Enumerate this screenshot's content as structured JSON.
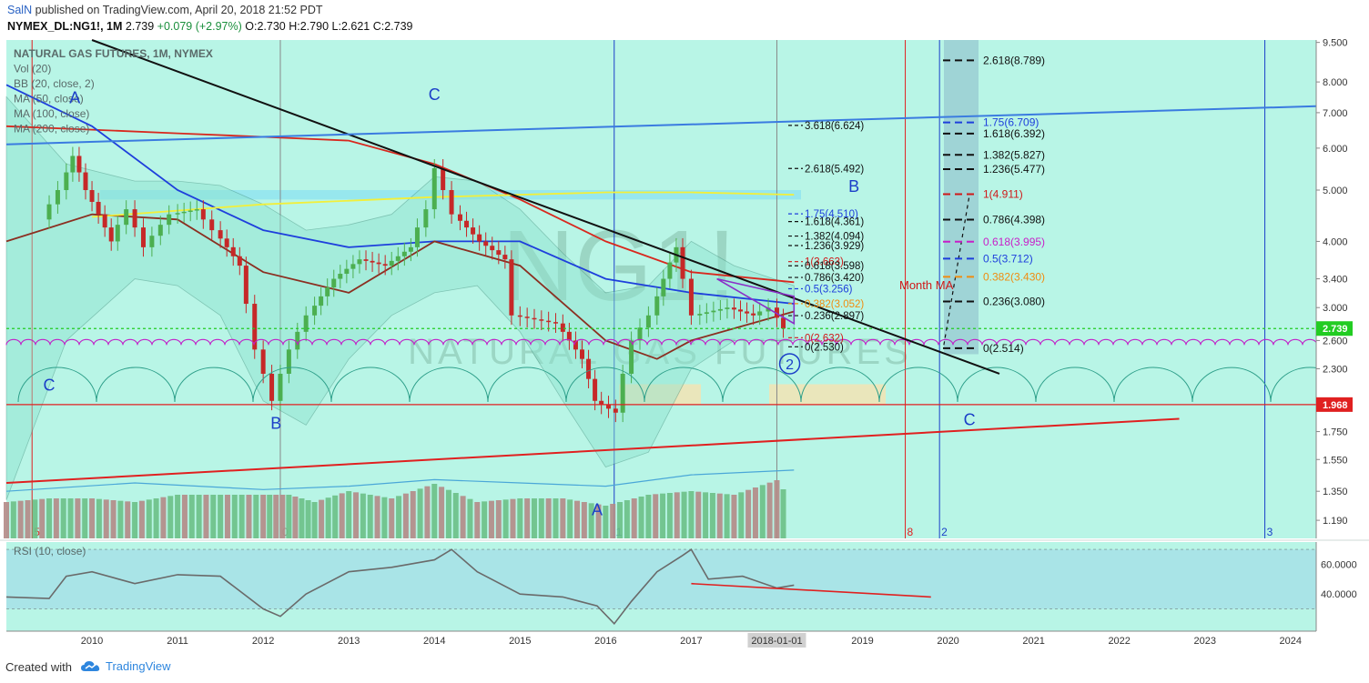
{
  "header": {
    "publisher_user": "SalN",
    "publisher_text": " published on TradingView.com, April 20, 2018 21:52 PDT",
    "symbol": "NYMEX_DL:NG1!, 1M",
    "last": "2.739",
    "change": "+0.079 (+2.97%)",
    "ohlc": {
      "O": "2.730",
      "H": "2.790",
      "L": "2.621",
      "C": "2.739"
    }
  },
  "legend": [
    "NATURAL GAS FUTURES, 1M, NYMEX",
    "Vol (20)",
    "BB (20, close, 2)",
    "MA (50, close)",
    "MA (100, close)",
    "MA (200, close)"
  ],
  "watermark": {
    "ticker": "NG1!",
    "name": "NATURAL GAS FUTURES"
  },
  "footer": {
    "created_with": "Created with",
    "brand": "TradingView"
  },
  "colors": {
    "background": "#b8f5e6",
    "bb_fill": "#8ee3cf",
    "ma50": "#1e3fdc",
    "ma100": "#d8281e",
    "ma200": "#8b2f21",
    "trend_black": "#111111",
    "trend_blue": "#3a7be0",
    "trend_red": "#e02020",
    "up_candle": "#4caf50",
    "down_candle": "#c62828"
  },
  "chart_data": {
    "type": "candlestick",
    "title": "NATURAL GAS FUTURES, 1M, NYMEX",
    "x_axis_labels": [
      "2010",
      "2011",
      "2012",
      "2013",
      "2014",
      "2015",
      "2016",
      "2017",
      "2018-01-01",
      "2019",
      "2020",
      "2021",
      "2022",
      "2023",
      "2024"
    ],
    "y_axis_labels": [
      "9.500",
      "8.000",
      "7.000",
      "6.000",
      "5.000",
      "4.000",
      "3.400",
      "3.000",
      "2.600",
      "2.300",
      "1.750",
      "1.550",
      "1.350",
      "1.190"
    ],
    "ylim": [
      1.1,
      9.6
    ],
    "y_scale": "log",
    "last_price_label": "2.739",
    "support_price_label": "1.968",
    "ohlc_path": [
      [
        2009.5,
        4.4
      ],
      [
        2009.7,
        5.0
      ],
      [
        2009.85,
        5.8
      ],
      [
        2010.0,
        5.0
      ],
      [
        2010.3,
        4.0
      ],
      [
        2010.5,
        4.6
      ],
      [
        2010.7,
        3.9
      ],
      [
        2010.9,
        4.3
      ],
      [
        2011.0,
        4.5
      ],
      [
        2011.3,
        4.6
      ],
      [
        2011.5,
        4.2
      ],
      [
        2011.8,
        3.6
      ],
      [
        2012.0,
        2.5
      ],
      [
        2012.2,
        2.0
      ],
      [
        2012.4,
        2.5
      ],
      [
        2012.6,
        2.9
      ],
      [
        2012.9,
        3.4
      ],
      [
        2013.2,
        3.7
      ],
      [
        2013.5,
        3.6
      ],
      [
        2013.8,
        3.9
      ],
      [
        2014.0,
        4.6
      ],
      [
        2014.1,
        5.5
      ],
      [
        2014.3,
        4.5
      ],
      [
        2014.6,
        4.0
      ],
      [
        2014.9,
        3.7
      ],
      [
        2015.0,
        2.9
      ],
      [
        2015.5,
        2.8
      ],
      [
        2015.8,
        2.4
      ],
      [
        2015.95,
        2.0
      ],
      [
        2016.2,
        1.9
      ],
      [
        2016.4,
        2.6
      ],
      [
        2016.6,
        2.9
      ],
      [
        2016.9,
        3.9
      ],
      [
        2017.1,
        2.9
      ],
      [
        2017.5,
        3.0
      ],
      [
        2017.8,
        2.9
      ],
      [
        2018.0,
        3.0
      ],
      [
        2018.15,
        2.74
      ]
    ],
    "ma50": [
      [
        2009.0,
        7.9
      ],
      [
        2010.0,
        6.6
      ],
      [
        2011.0,
        5.0
      ],
      [
        2012.0,
        4.2
      ],
      [
        2013.0,
        3.9
      ],
      [
        2014.0,
        4.0
      ],
      [
        2015.0,
        4.0
      ],
      [
        2016.0,
        3.4
      ],
      [
        2017.0,
        3.2
      ],
      [
        2018.2,
        3.05
      ]
    ],
    "ma100": [
      [
        2009.0,
        6.6
      ],
      [
        2010.0,
        6.5
      ],
      [
        2011.0,
        6.4
      ],
      [
        2012.0,
        6.3
      ],
      [
        2013.0,
        6.2
      ],
      [
        2014.0,
        5.6
      ],
      [
        2015.0,
        4.8
      ],
      [
        2016.0,
        4.0
      ],
      [
        2017.0,
        3.5
      ],
      [
        2018.2,
        3.35
      ]
    ],
    "ma200": [
      [
        2009.0,
        4.0
      ],
      [
        2010.0,
        4.5
      ],
      [
        2011.0,
        4.4
      ],
      [
        2012.0,
        3.5
      ],
      [
        2013.0,
        3.2
      ],
      [
        2014.0,
        4.0
      ],
      [
        2015.0,
        3.6
      ],
      [
        2016.0,
        2.6
      ],
      [
        2016.6,
        2.4
      ],
      [
        2017.0,
        2.6
      ],
      [
        2018.2,
        2.95
      ]
    ],
    "trendlines": [
      {
        "color": "#111111",
        "from": [
          2010.0,
          9.6
        ],
        "to": [
          2020.6,
          2.25
        ]
      },
      {
        "color": "#3a7be0",
        "from": [
          2009.0,
          6.1
        ],
        "to": [
          2024.3,
          7.2
        ]
      },
      {
        "color": "#e02020",
        "from": [
          2009.0,
          1.4
        ],
        "to": [
          2022.7,
          1.85
        ]
      }
    ],
    "horizontal_levels": [
      {
        "price": 2.739,
        "color": "#22cc22",
        "dashed": true
      },
      {
        "price": 1.968,
        "color": "#e02020",
        "dashed": false
      }
    ],
    "wave_labels": [
      {
        "text": "A",
        "x": 2009.8,
        "price": 7.5,
        "color": "#1b3fc8"
      },
      {
        "text": "C",
        "x": 2014.0,
        "price": 7.6,
        "color": "#1b3fc8"
      },
      {
        "text": "C",
        "x": 2009.5,
        "price": 2.15,
        "color": "#1b3fc8"
      },
      {
        "text": "B",
        "x": 2012.15,
        "price": 1.82,
        "color": "#1b3fc8"
      },
      {
        "text": "A",
        "x": 2015.9,
        "price": 1.25,
        "color": "#1b3fc8"
      },
      {
        "text": "B",
        "x": 2018.9,
        "price": 5.1,
        "color": "#1b3fc8"
      },
      {
        "text": "C",
        "x": 2020.25,
        "price": 1.85,
        "color": "#1b3fc8"
      },
      {
        "text": "2",
        "x": 2018.15,
        "price": 2.35,
        "color": "#1b3fc8"
      }
    ],
    "vertical_markers": [
      {
        "x": 2009.3,
        "color": "#e02020",
        "label": "5"
      },
      {
        "x": 2012.2,
        "color": "#888888",
        "label": "0"
      },
      {
        "x": 2016.1,
        "color": "#1b3fc8",
        "label": "1"
      },
      {
        "x": 2018.0,
        "color": "#888888",
        "label": ""
      },
      {
        "x": 2019.5,
        "color": "#e02020",
        "label": "8"
      },
      {
        "x": 2019.9,
        "color": "#1b3fc8",
        "label": "2"
      },
      {
        "x": 2023.7,
        "color": "#1b3fc8",
        "label": "3"
      }
    ],
    "fib_right": [
      {
        "text": "2.618(8.789)",
        "price": 8.789,
        "color": "#111111"
      },
      {
        "text": "1.75(6.709)",
        "price": 6.709,
        "color": "#1e3fdc"
      },
      {
        "text": "1.618(6.392)",
        "price": 6.392,
        "color": "#111111"
      },
      {
        "text": "1.382(5.827)",
        "price": 5.827,
        "color": "#111111"
      },
      {
        "text": "1.236(5.477)",
        "price": 5.477,
        "color": "#111111"
      },
      {
        "text": "1(4.911)",
        "price": 4.911,
        "color": "#d01818"
      },
      {
        "text": "0.786(4.398)",
        "price": 4.398,
        "color": "#111111"
      },
      {
        "text": "0.618(3.995)",
        "price": 3.995,
        "color": "#c81fc8"
      },
      {
        "text": "0.5(3.712)",
        "price": 3.712,
        "color": "#1e3fdc"
      },
      {
        "text": "0.382(3.430)",
        "price": 3.43,
        "color": "#f08c10"
      },
      {
        "text": "0.236(3.080)",
        "price": 3.08,
        "color": "#111111"
      },
      {
        "text": "0(2.514)",
        "price": 2.514,
        "color": "#111111"
      }
    ],
    "fib_cluster": [
      {
        "text": "3.618(6.624)",
        "price": 6.624,
        "color": "#111111"
      },
      {
        "text": "2.618(5.492)",
        "price": 5.492,
        "color": "#111111"
      },
      {
        "text": "1.75(4.510)",
        "price": 4.51,
        "color": "#1e3fdc"
      },
      {
        "text": "1.618(4.361)",
        "price": 4.361,
        "color": "#111111"
      },
      {
        "text": "1.382(4.094)",
        "price": 4.094,
        "color": "#111111"
      },
      {
        "text": "1.236(3.929)",
        "price": 3.929,
        "color": "#111111"
      },
      {
        "text": "1(3.663)",
        "price": 3.663,
        "color": "#d01818"
      },
      {
        "text": "0.618(3.598)",
        "price": 3.598,
        "color": "#111111"
      },
      {
        "text": "0.786(3.420)",
        "price": 3.42,
        "color": "#111111"
      },
      {
        "text": "0.5(3.256)",
        "price": 3.256,
        "color": "#1e3fdc"
      },
      {
        "text": "0.382(3.052)",
        "price": 3.052,
        "color": "#f08c10"
      },
      {
        "text": "0.236(2.897)",
        "price": 2.897,
        "color": "#111111"
      },
      {
        "text": "0(2.632)",
        "price": 2.632,
        "color": "#d01818"
      },
      {
        "text": "0(2.530)",
        "price": 2.53,
        "color": "#111111"
      }
    ],
    "month_ma_label": "Month MA",
    "rsi": {
      "title": "RSI (10, close)",
      "y_axis_labels": [
        "60.0000",
        "40.0000"
      ],
      "ylim": [
        15,
        75
      ],
      "band": [
        30,
        70
      ],
      "values": [
        [
          2009.0,
          38
        ],
        [
          2009.5,
          37
        ],
        [
          2009.7,
          52
        ],
        [
          2010.0,
          55
        ],
        [
          2010.5,
          47
        ],
        [
          2011.0,
          53
        ],
        [
          2011.5,
          52
        ],
        [
          2012.0,
          30
        ],
        [
          2012.2,
          25
        ],
        [
          2012.5,
          40
        ],
        [
          2013.0,
          55
        ],
        [
          2013.5,
          58
        ],
        [
          2014.0,
          63
        ],
        [
          2014.2,
          70
        ],
        [
          2014.5,
          55
        ],
        [
          2015.0,
          40
        ],
        [
          2015.5,
          38
        ],
        [
          2015.9,
          32
        ],
        [
          2016.1,
          20
        ],
        [
          2016.3,
          35
        ],
        [
          2016.6,
          55
        ],
        [
          2016.9,
          66
        ],
        [
          2017.0,
          70
        ],
        [
          2017.2,
          50
        ],
        [
          2017.6,
          52
        ],
        [
          2018.0,
          44
        ],
        [
          2018.2,
          46
        ]
      ],
      "divergence": {
        "from": [
          2017.0,
          47
        ],
        "to": [
          2019.8,
          38
        ]
      }
    },
    "volume": {
      "title": "Vol (20)",
      "bars": [
        [
          2009.0,
          0.5,
          "d"
        ],
        [
          2009.5,
          0.55,
          "u"
        ],
        [
          2010.0,
          0.55,
          "d"
        ],
        [
          2010.5,
          0.5,
          "u"
        ],
        [
          2011.0,
          0.6,
          "u"
        ],
        [
          2011.5,
          0.6,
          "u"
        ],
        [
          2012.0,
          0.6,
          "d"
        ],
        [
          2012.3,
          0.6,
          "u"
        ],
        [
          2012.6,
          0.5,
          "u"
        ],
        [
          2013.0,
          0.65,
          "u"
        ],
        [
          2013.5,
          0.55,
          "d"
        ],
        [
          2014.0,
          0.75,
          "u"
        ],
        [
          2014.5,
          0.5,
          "d"
        ],
        [
          2015.0,
          0.55,
          "u"
        ],
        [
          2015.5,
          0.55,
          "d"
        ],
        [
          2016.0,
          0.45,
          "u"
        ],
        [
          2016.5,
          0.6,
          "u"
        ],
        [
          2017.0,
          0.65,
          "u"
        ],
        [
          2017.5,
          0.6,
          "d"
        ],
        [
          2018.0,
          0.8,
          "d"
        ],
        [
          2018.15,
          0.55,
          "u"
        ]
      ]
    }
  }
}
